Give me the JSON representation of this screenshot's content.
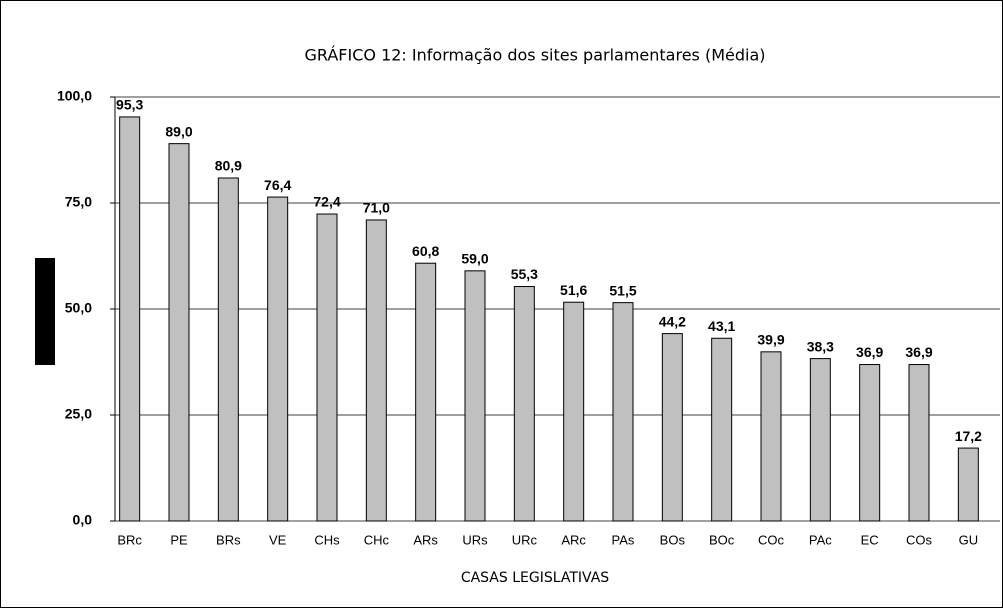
{
  "chart_data": {
    "type": "bar",
    "title": "GRÁFICO 12: Informação dos sites parlamentares (Média)",
    "x_label": "CASAS LEGISLATIVAS",
    "categories": [
      "BRc",
      "PE",
      "BRs",
      "VE",
      "CHs",
      "CHc",
      "ARs",
      "URs",
      "URc",
      "ARc",
      "PAs",
      "BOs",
      "BOc",
      "COc",
      "PAc",
      "EC",
      "COs",
      "GU"
    ],
    "values": [
      95.3,
      89.0,
      80.9,
      76.4,
      72.4,
      71.0,
      60.8,
      59.0,
      55.3,
      51.6,
      51.5,
      44.2,
      43.1,
      39.9,
      38.3,
      36.9,
      36.9,
      17.2
    ],
    "value_labels": [
      "95,3",
      "89,0",
      "80,9",
      "76,4",
      "72,4",
      "71,0",
      "60,8",
      "59,0",
      "55,3",
      "51,6",
      "51,5",
      "44,2",
      "43,1",
      "39,9",
      "38,3",
      "36,9",
      "36,9",
      "17,2"
    ],
    "color": "#c0c0c0",
    "ylim": [
      0,
      100
    ],
    "yticks": [
      {
        "value": 0,
        "label": "0,0"
      },
      {
        "value": 25,
        "label": "25,0"
      },
      {
        "value": 50,
        "label": "50,0"
      },
      {
        "value": 75,
        "label": "75,0"
      },
      {
        "value": 100,
        "label": "100,0"
      }
    ],
    "grid": true
  }
}
